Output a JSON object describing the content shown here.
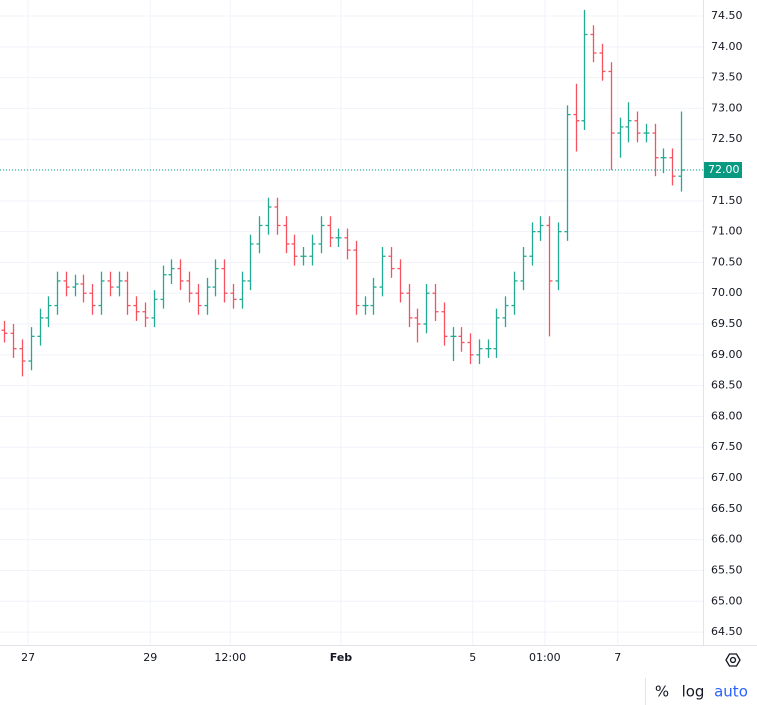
{
  "chart_data": {
    "type": "ohlc",
    "open": [
      69.4,
      69.35,
      69.1,
      68.9,
      69.3,
      69.6,
      69.8,
      70.2,
      70.1,
      70.15,
      70.0,
      69.8,
      70.2,
      70.1,
      70.2,
      69.8,
      69.7,
      69.6,
      69.9,
      70.3,
      70.4,
      70.2,
      70.0,
      69.8,
      70.1,
      70.4,
      70.0,
      69.9,
      70.2,
      70.8,
      71.1,
      71.4,
      71.1,
      70.8,
      70.6,
      70.6,
      70.8,
      71.1,
      70.9,
      70.9,
      70.7,
      69.8,
      69.8,
      70.1,
      70.6,
      70.4,
      70.0,
      69.6,
      69.5,
      70.0,
      69.7,
      69.3,
      69.3,
      69.2,
      69.0,
      69.1,
      69.1,
      69.6,
      69.8,
      70.2,
      70.6,
      71.0,
      71.1,
      70.2,
      71.0,
      72.9,
      72.8,
      74.2,
      73.9,
      73.6,
      72.6,
      72.7,
      72.8,
      72.6,
      72.6,
      72.2,
      72.2,
      71.9
    ],
    "high": [
      69.55,
      69.5,
      69.25,
      69.45,
      69.75,
      69.95,
      70.35,
      70.35,
      70.3,
      70.3,
      70.15,
      70.35,
      70.35,
      70.35,
      70.35,
      69.95,
      69.85,
      70.05,
      70.45,
      70.55,
      70.55,
      70.35,
      70.15,
      70.25,
      70.55,
      70.55,
      70.15,
      70.35,
      70.95,
      71.25,
      71.55,
      71.55,
      71.25,
      70.95,
      70.75,
      70.95,
      71.25,
      71.25,
      71.05,
      71.05,
      70.85,
      69.95,
      70.25,
      70.75,
      70.75,
      70.55,
      70.15,
      69.75,
      70.15,
      70.15,
      69.85,
      69.45,
      69.45,
      69.35,
      69.25,
      69.25,
      69.75,
      69.95,
      70.35,
      70.75,
      71.15,
      71.25,
      71.25,
      71.15,
      73.05,
      73.4,
      74.6,
      74.35,
      74.05,
      73.75,
      72.85,
      73.1,
      72.95,
      72.75,
      72.75,
      72.35,
      72.35,
      72.95
    ],
    "low": [
      69.2,
      68.95,
      68.65,
      68.75,
      69.15,
      69.45,
      69.65,
      69.95,
      69.95,
      69.85,
      69.65,
      69.65,
      69.95,
      69.95,
      69.65,
      69.55,
      69.45,
      69.45,
      69.75,
      70.15,
      70.05,
      69.85,
      69.65,
      69.65,
      69.95,
      69.85,
      69.75,
      69.75,
      70.05,
      70.65,
      70.95,
      70.95,
      70.65,
      70.45,
      70.45,
      70.45,
      70.65,
      70.75,
      70.75,
      70.55,
      69.65,
      69.65,
      69.65,
      69.95,
      70.25,
      69.85,
      69.45,
      69.2,
      69.35,
      69.55,
      69.15,
      68.9,
      69.05,
      68.85,
      68.85,
      68.95,
      68.95,
      69.45,
      69.65,
      70.05,
      70.45,
      70.85,
      69.3,
      70.05,
      70.85,
      72.3,
      72.65,
      73.75,
      73.45,
      72.0,
      72.2,
      72.45,
      72.45,
      72.45,
      71.9,
      71.95,
      71.75,
      71.65
    ],
    "close": [
      69.35,
      69.1,
      68.9,
      69.3,
      69.6,
      69.8,
      70.2,
      70.1,
      70.15,
      70.0,
      69.8,
      70.2,
      70.1,
      70.2,
      69.8,
      69.7,
      69.6,
      69.9,
      70.3,
      70.4,
      70.2,
      70.0,
      69.8,
      70.1,
      70.4,
      70.0,
      69.9,
      70.2,
      70.8,
      71.1,
      71.4,
      71.1,
      70.8,
      70.6,
      70.6,
      70.8,
      71.1,
      70.9,
      70.9,
      70.7,
      69.8,
      69.8,
      70.1,
      70.6,
      70.4,
      70.0,
      69.6,
      69.5,
      70.0,
      69.7,
      69.3,
      69.3,
      69.2,
      69.0,
      69.1,
      69.1,
      69.6,
      69.8,
      70.2,
      70.6,
      71.0,
      71.1,
      70.2,
      71.0,
      72.9,
      72.8,
      74.2,
      73.9,
      73.6,
      72.6,
      72.7,
      72.8,
      72.6,
      72.6,
      72.2,
      72.2,
      71.9,
      72.0
    ],
    "up_color": "#22ab94",
    "down_color": "#f7525f",
    "xlim": [
      0,
      80
    ],
    "xticks": [
      {
        "value": 3.2,
        "label": "27"
      },
      {
        "value": 17.1,
        "label": "29"
      },
      {
        "value": 26.2,
        "label": "12:00"
      },
      {
        "value": 38.8,
        "label": "Feb"
      },
      {
        "value": 53.8,
        "label": "5"
      },
      {
        "value": 62,
        "label": "01:00"
      },
      {
        "value": 70.3,
        "label": "7"
      }
    ],
    "ylim": [
      64.29,
      74.76
    ],
    "yticks": [
      {
        "value": 74.5,
        "label": "74.50"
      },
      {
        "value": 74,
        "label": "74.00"
      },
      {
        "value": 73.5,
        "label": "73.50"
      },
      {
        "value": 73,
        "label": "73.00"
      },
      {
        "value": 72.5,
        "label": "72.50"
      },
      {
        "value": 72,
        "label": "72.00"
      },
      {
        "value": 71.5,
        "label": "71.50"
      },
      {
        "value": 71,
        "label": "71.00"
      },
      {
        "value": 70.5,
        "label": "70.50"
      },
      {
        "value": 70,
        "label": "70.00"
      },
      {
        "value": 69.5,
        "label": "69.50"
      },
      {
        "value": 69,
        "label": "69.00"
      },
      {
        "value": 68.5,
        "label": "68.50"
      },
      {
        "value": 68,
        "label": "68.00"
      },
      {
        "value": 67.5,
        "label": "67.50"
      },
      {
        "value": 67,
        "label": "67.00"
      },
      {
        "value": 66.5,
        "label": "66.50"
      },
      {
        "value": 66,
        "label": "66.00"
      },
      {
        "value": 65.5,
        "label": "65.50"
      },
      {
        "value": 65,
        "label": "65.00"
      },
      {
        "value": 64.5,
        "label": "64.50"
      }
    ],
    "grid": true,
    "last_price": {
      "value": 72,
      "label": "72.00"
    },
    "last_price_color": "#089981",
    "scale_options": [
      "%",
      "log",
      "auto"
    ]
  }
}
